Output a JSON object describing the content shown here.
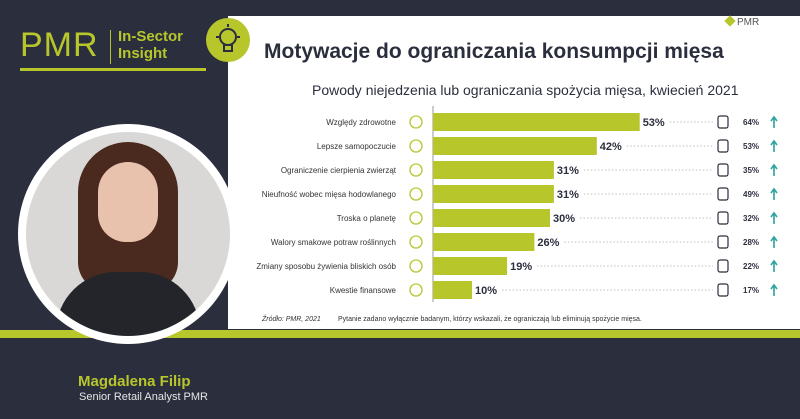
{
  "brand": {
    "pmr": "PMR",
    "sub_line1": "In-Sector",
    "sub_line2": "Insight"
  },
  "logo": {
    "text": "PMR"
  },
  "title": "Motywacje do ograniczania konsumpcji mięsa",
  "person": {
    "name": "Magdalena Filip",
    "role": "Senior Retail Analyst PMR"
  },
  "footer": {
    "source": "Źródło: PMR, 2021",
    "note": "Pytanie zadano wyłącznie badanym, którzy wskazali, że ograniczają lub eliminują spożycie mięsa."
  },
  "colors": {
    "lime": "#b7c62b",
    "navy": "#2b2f3d",
    "teal": "#2aa39a"
  },
  "chart_data": {
    "type": "bar",
    "orientation": "horizontal",
    "title": "Powody niejedzenia lub ograniczania spożycia mięsa, kwiecień 2021",
    "categories": [
      "Względy zdrowotne",
      "Lepsze samopoczucie",
      "Ograniczenie cierpienia zwierząt",
      "Nieufność wobec mięsa hodowlanego",
      "Troska o planetę",
      "Walory smakowe potraw roślinnych",
      "Zmiany sposobu żywienia bliskich osób",
      "Kwestie finansowe"
    ],
    "values": [
      53,
      42,
      31,
      31,
      30,
      26,
      19,
      10
    ],
    "value_labels": [
      "53%",
      "42%",
      "31%",
      "31%",
      "30%",
      "26%",
      "19%",
      "10%"
    ],
    "secondary_values": [
      64,
      53,
      35,
      49,
      32,
      28,
      22,
      17
    ],
    "secondary_labels": [
      "64%",
      "53%",
      "35%",
      "49%",
      "32%",
      "28%",
      "22%",
      "17%"
    ],
    "category_icons": [
      "doctor-icon",
      "runner-icon",
      "cow-icon",
      "animal-icon",
      "tree-icon",
      "vegetable-icon",
      "apple-icon",
      "dollar-icon"
    ],
    "segment_icons": [
      "person-icon",
      "building-icon",
      "building-icon",
      "family-icon",
      "money-stack-icon",
      "person-icon",
      "house-icon",
      "coins-icon"
    ],
    "xlim": [
      0,
      100
    ]
  }
}
